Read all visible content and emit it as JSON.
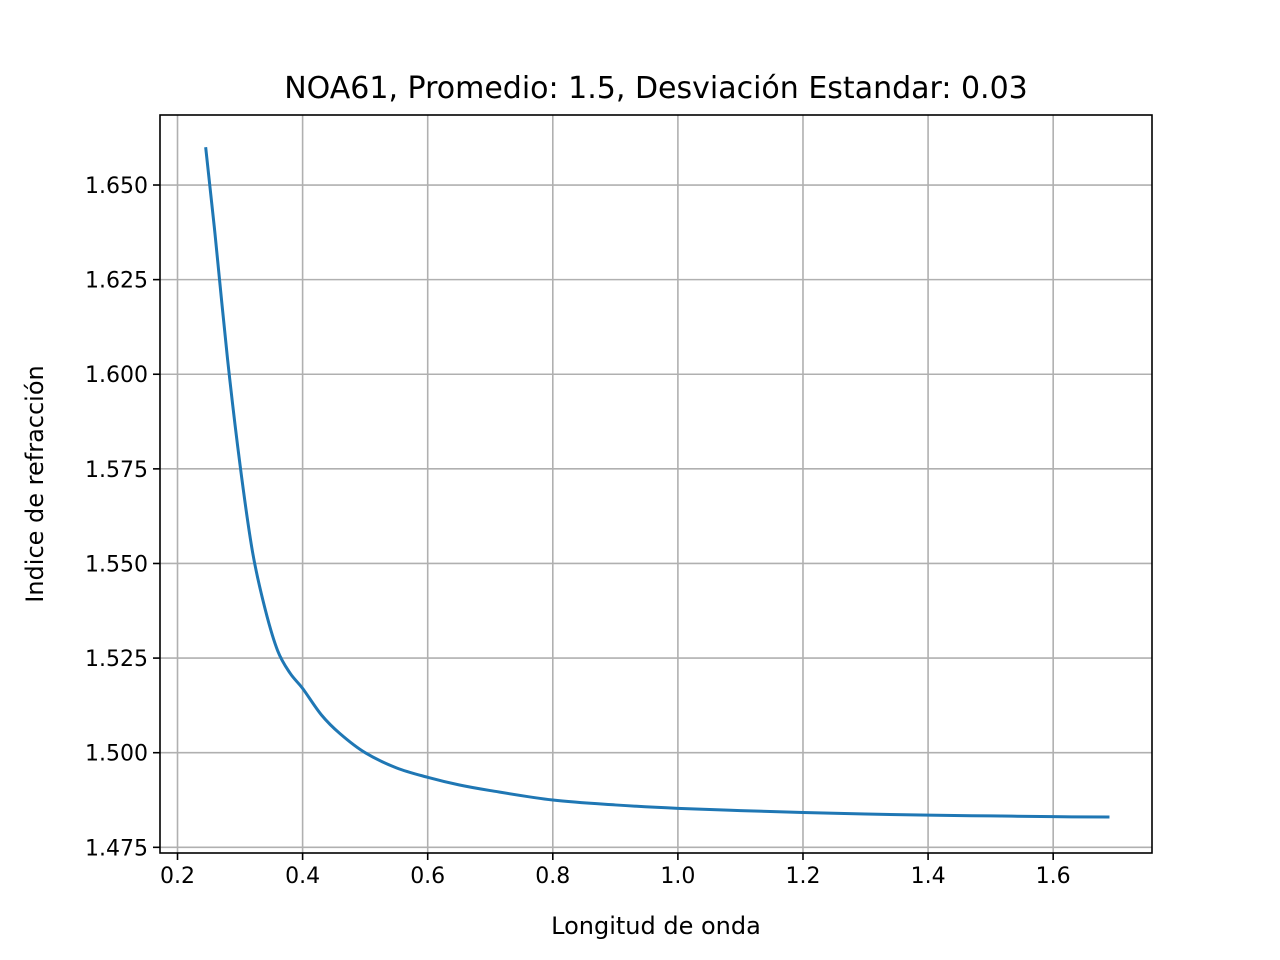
{
  "chart_data": {
    "type": "line",
    "title": "NOA61, Promedio: 1.5, Desviación Estandar: 0.03",
    "xlabel": "Longitud de onda",
    "ylabel": "Indice de refracción",
    "xlim": [
      0.172,
      1.758
    ],
    "ylim": [
      1.4735,
      1.6685
    ],
    "xticks": [
      0.2,
      0.4,
      0.6,
      0.8,
      1.0,
      1.2,
      1.4,
      1.6
    ],
    "xtick_labels": [
      "0.2",
      "0.4",
      "0.6",
      "0.8",
      "1.0",
      "1.2",
      "1.4",
      "1.6"
    ],
    "yticks": [
      1.475,
      1.5,
      1.525,
      1.55,
      1.575,
      1.6,
      1.625,
      1.65
    ],
    "ytick_labels": [
      "1.475",
      "1.500",
      "1.525",
      "1.550",
      "1.575",
      "1.600",
      "1.625",
      "1.650"
    ],
    "grid": true,
    "series": [
      {
        "color": "#1f77b4",
        "x": [
          0.245,
          0.26,
          0.28,
          0.3,
          0.32,
          0.34,
          0.36,
          0.38,
          0.4,
          0.43,
          0.46,
          0.5,
          0.55,
          0.6,
          0.65,
          0.7,
          0.8,
          0.9,
          1.0,
          1.1,
          1.2,
          1.3,
          1.4,
          1.5,
          1.6,
          1.69
        ],
        "y": [
          1.66,
          1.637,
          1.604,
          1.576,
          1.553,
          1.538,
          1.527,
          1.521,
          1.517,
          1.51,
          1.505,
          1.5,
          1.496,
          1.4935,
          1.4915,
          1.49,
          1.4875,
          1.4862,
          1.4853,
          1.4847,
          1.4842,
          1.4838,
          1.4835,
          1.4833,
          1.4831,
          1.483
        ]
      }
    ]
  }
}
